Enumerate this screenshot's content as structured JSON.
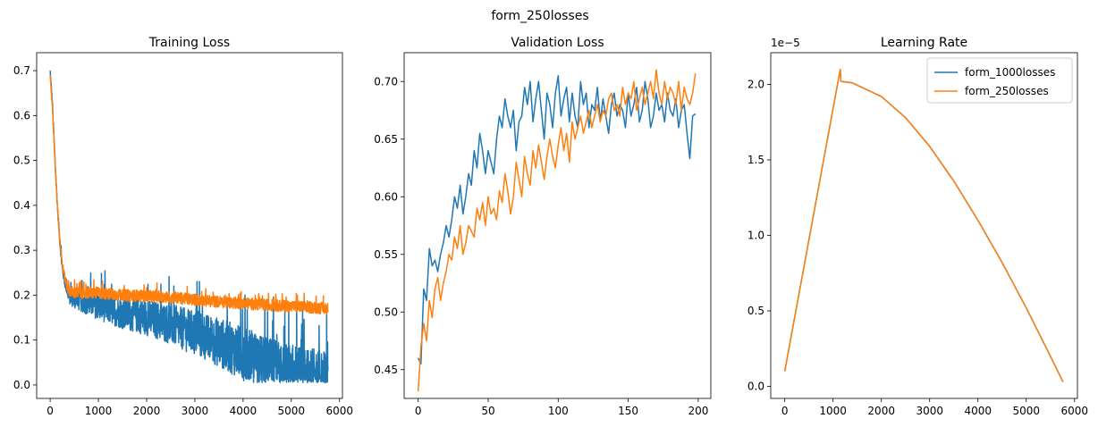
{
  "figure": {
    "suptitle": "form_250losses"
  },
  "colors": {
    "series1": "#1f77b4",
    "series2": "#ff7f0e"
  },
  "chart_data": [
    {
      "type": "line",
      "title": "Training Loss",
      "xlabel": "",
      "ylabel": "",
      "xlim": [
        -280,
        6060
      ],
      "ylim": [
        -0.03,
        0.74
      ],
      "xticks": [
        0,
        1000,
        2000,
        3000,
        4000,
        5000,
        6000
      ],
      "yticks": [
        0.0,
        0.1,
        0.2,
        0.3,
        0.4,
        0.5,
        0.6,
        0.7
      ],
      "ytick_decimals": 1,
      "grid": false,
      "series": [
        {
          "name": "form_1000losses",
          "color": "#1f77b4",
          "noisy": true,
          "x": [
            0,
            50,
            100,
            150,
            200,
            250,
            300,
            350,
            400,
            500,
            700,
            1000,
            1500,
            2000,
            2500,
            3000,
            3500,
            4000,
            4500,
            5000,
            5500,
            5760
          ],
          "y": [
            0.7,
            0.62,
            0.5,
            0.4,
            0.32,
            0.26,
            0.23,
            0.21,
            0.195,
            0.19,
            0.185,
            0.175,
            0.16,
            0.15,
            0.135,
            0.115,
            0.095,
            0.07,
            0.045,
            0.03,
            0.02,
            0.02
          ],
          "noise": [
            0.0,
            0.01,
            0.01,
            0.01,
            0.01,
            0.01,
            0.01,
            0.012,
            0.015,
            0.02,
            0.025,
            0.03,
            0.035,
            0.04,
            0.045,
            0.05,
            0.055,
            0.06,
            0.06,
            0.06,
            0.06,
            0.06
          ]
        },
        {
          "name": "form_250losses",
          "color": "#ff7f0e",
          "noisy": true,
          "x": [
            0,
            50,
            100,
            150,
            200,
            250,
            300,
            350,
            400,
            500,
            700,
            1000,
            1500,
            2000,
            2500,
            3000,
            3500,
            4000,
            4500,
            5000,
            5500,
            5760
          ],
          "y": [
            0.69,
            0.61,
            0.5,
            0.4,
            0.32,
            0.27,
            0.24,
            0.22,
            0.21,
            0.205,
            0.205,
            0.205,
            0.2,
            0.198,
            0.195,
            0.19,
            0.185,
            0.182,
            0.178,
            0.175,
            0.172,
            0.17
          ],
          "noise": [
            0.0,
            0.005,
            0.005,
            0.005,
            0.006,
            0.008,
            0.01,
            0.012,
            0.012,
            0.013,
            0.013,
            0.013,
            0.013,
            0.013,
            0.013,
            0.013,
            0.013,
            0.013,
            0.013,
            0.013,
            0.013,
            0.013
          ]
        }
      ]
    },
    {
      "type": "line",
      "title": "Validation Loss",
      "xlabel": "",
      "ylabel": "",
      "xlim": [
        -10,
        209
      ],
      "ylim": [
        0.425,
        0.725
      ],
      "xticks": [
        0,
        50,
        100,
        150,
        200
      ],
      "yticks": [
        0.45,
        0.5,
        0.55,
        0.6,
        0.65,
        0.7
      ],
      "ytick_decimals": 2,
      "grid": false,
      "series": [
        {
          "name": "form_1000losses",
          "color": "#1f77b4",
          "noisy": false,
          "x": [
            0,
            2,
            4,
            6,
            8,
            10,
            12,
            14,
            16,
            18,
            20,
            22,
            24,
            26,
            28,
            30,
            32,
            34,
            36,
            38,
            40,
            42,
            44,
            46,
            48,
            50,
            52,
            54,
            56,
            58,
            60,
            62,
            64,
            66,
            68,
            70,
            72,
            74,
            76,
            78,
            80,
            82,
            84,
            86,
            88,
            90,
            92,
            94,
            96,
            98,
            100,
            102,
            104,
            106,
            108,
            110,
            112,
            114,
            116,
            118,
            120,
            122,
            124,
            126,
            128,
            130,
            132,
            134,
            136,
            138,
            140,
            142,
            144,
            146,
            148,
            150,
            152,
            154,
            156,
            158,
            160,
            162,
            164,
            166,
            168,
            170,
            172,
            174,
            176,
            178,
            180,
            182,
            184,
            186,
            188,
            190,
            192,
            194,
            196,
            198
          ],
          "y": [
            0.46,
            0.455,
            0.52,
            0.51,
            0.555,
            0.54,
            0.545,
            0.535,
            0.55,
            0.56,
            0.575,
            0.565,
            0.58,
            0.6,
            0.59,
            0.61,
            0.585,
            0.6,
            0.62,
            0.61,
            0.64,
            0.625,
            0.655,
            0.64,
            0.62,
            0.64,
            0.63,
            0.62,
            0.65,
            0.67,
            0.66,
            0.685,
            0.67,
            0.66,
            0.675,
            0.64,
            0.665,
            0.67,
            0.695,
            0.68,
            0.7,
            0.665,
            0.685,
            0.7,
            0.675,
            0.65,
            0.69,
            0.68,
            0.66,
            0.69,
            0.705,
            0.67,
            0.685,
            0.695,
            0.665,
            0.69,
            0.67,
            0.66,
            0.7,
            0.68,
            0.69,
            0.66,
            0.68,
            0.675,
            0.695,
            0.665,
            0.685,
            0.67,
            0.655,
            0.68,
            0.69,
            0.67,
            0.68,
            0.675,
            0.66,
            0.69,
            0.67,
            0.68,
            0.695,
            0.665,
            0.675,
            0.7,
            0.685,
            0.66,
            0.67,
            0.69,
            0.675,
            0.68,
            0.665,
            0.69,
            0.675,
            0.67,
            0.685,
            0.66,
            0.675,
            0.68,
            0.655,
            0.633,
            0.67,
            0.672
          ]
        },
        {
          "name": "form_250losses",
          "color": "#ff7f0e",
          "noisy": false,
          "x": [
            0,
            2,
            4,
            6,
            8,
            10,
            12,
            14,
            16,
            18,
            20,
            22,
            24,
            26,
            28,
            30,
            32,
            34,
            36,
            38,
            40,
            42,
            44,
            46,
            48,
            50,
            52,
            54,
            56,
            58,
            60,
            62,
            64,
            66,
            68,
            70,
            72,
            74,
            76,
            78,
            80,
            82,
            84,
            86,
            88,
            90,
            92,
            94,
            96,
            98,
            100,
            102,
            104,
            106,
            108,
            110,
            112,
            114,
            116,
            118,
            120,
            122,
            124,
            126,
            128,
            130,
            132,
            134,
            136,
            138,
            140,
            142,
            144,
            146,
            148,
            150,
            152,
            154,
            156,
            158,
            160,
            162,
            164,
            166,
            168,
            170,
            172,
            174,
            176,
            178,
            180,
            182,
            184,
            186,
            188,
            190,
            192,
            194,
            196,
            198
          ],
          "y": [
            0.431,
            0.47,
            0.49,
            0.475,
            0.51,
            0.495,
            0.52,
            0.53,
            0.51,
            0.525,
            0.535,
            0.55,
            0.545,
            0.565,
            0.555,
            0.575,
            0.55,
            0.56,
            0.575,
            0.57,
            0.565,
            0.59,
            0.58,
            0.595,
            0.575,
            0.6,
            0.585,
            0.59,
            0.58,
            0.605,
            0.595,
            0.62,
            0.605,
            0.585,
            0.6,
            0.63,
            0.615,
            0.6,
            0.635,
            0.62,
            0.61,
            0.64,
            0.625,
            0.645,
            0.63,
            0.615,
            0.635,
            0.65,
            0.635,
            0.625,
            0.645,
            0.66,
            0.64,
            0.655,
            0.63,
            0.665,
            0.65,
            0.66,
            0.67,
            0.655,
            0.665,
            0.675,
            0.66,
            0.67,
            0.68,
            0.665,
            0.675,
            0.67,
            0.685,
            0.69,
            0.675,
            0.68,
            0.67,
            0.695,
            0.68,
            0.69,
            0.685,
            0.7,
            0.675,
            0.685,
            0.695,
            0.68,
            0.69,
            0.7,
            0.685,
            0.71,
            0.69,
            0.68,
            0.7,
            0.685,
            0.695,
            0.69,
            0.68,
            0.7,
            0.675,
            0.695,
            0.685,
            0.68,
            0.69,
            0.707
          ]
        }
      ]
    },
    {
      "type": "line",
      "title": "Learning Rate",
      "xlabel": "",
      "ylabel": "",
      "offset_label": "1e−5",
      "xlim": [
        -290,
        6060
      ],
      "ylim": [
        -0.08,
        2.21
      ],
      "xticks": [
        0,
        1000,
        2000,
        3000,
        4000,
        5000,
        6000
      ],
      "yticks": [
        0.0,
        0.5,
        1.0,
        1.5,
        2.0
      ],
      "ytick_decimals": 1,
      "grid": false,
      "legend": {
        "location": "top-right",
        "entries": [
          "form_1000losses",
          "form_250losses"
        ]
      },
      "series": [
        {
          "name": "form_1000losses",
          "color": "#1f77b4",
          "noisy": false,
          "x": [
            0,
            1150,
            1160,
            1400,
            2000,
            2500,
            3000,
            3500,
            4000,
            4500,
            5000,
            5500,
            5760
          ],
          "y": [
            0.1,
            2.1,
            2.02,
            2.01,
            1.92,
            1.78,
            1.59,
            1.36,
            1.1,
            0.82,
            0.52,
            0.2,
            0.03
          ]
        },
        {
          "name": "form_250losses",
          "color": "#ff7f0e",
          "noisy": false,
          "x": [
            0,
            1150,
            1160,
            1400,
            2000,
            2500,
            3000,
            3500,
            4000,
            4500,
            5000,
            5500,
            5760
          ],
          "y": [
            0.1,
            2.1,
            2.02,
            2.01,
            1.92,
            1.78,
            1.59,
            1.36,
            1.1,
            0.82,
            0.52,
            0.2,
            0.03
          ]
        }
      ]
    }
  ]
}
